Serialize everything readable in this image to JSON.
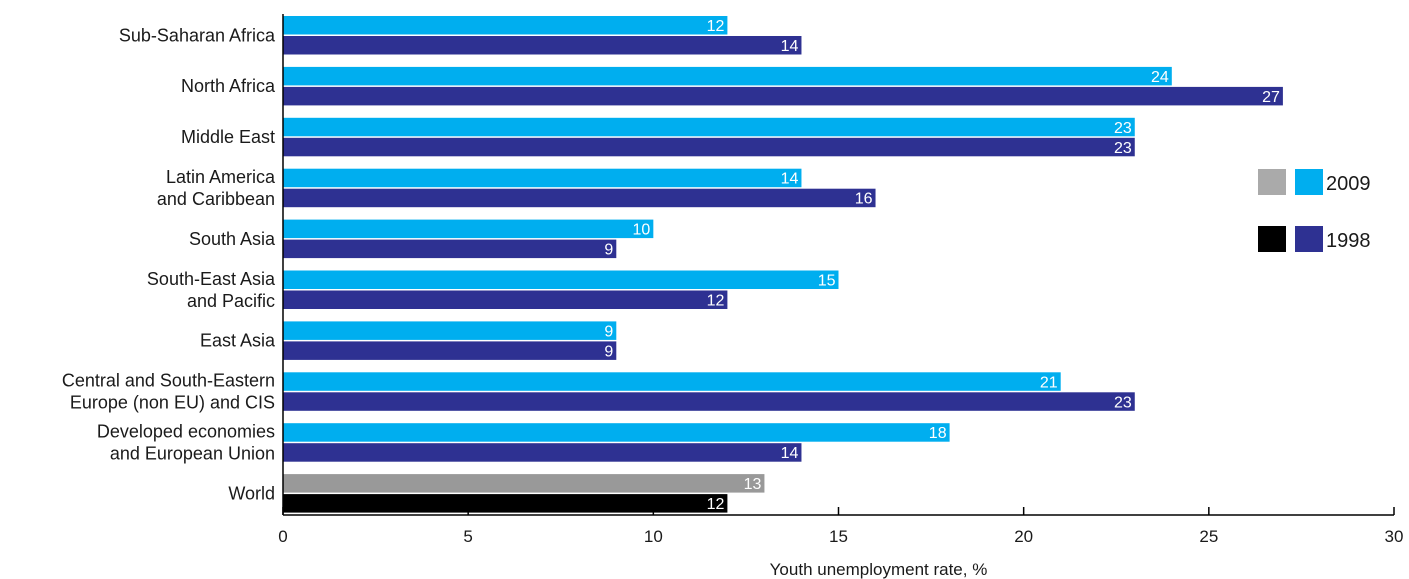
{
  "chart_data": {
    "type": "bar",
    "orientation": "horizontal",
    "categories": [
      [
        "Sub-Saharan Africa"
      ],
      [
        "North Africa"
      ],
      [
        "Middle East"
      ],
      [
        "Latin America",
        "and Caribbean"
      ],
      [
        "South Asia"
      ],
      [
        "South-East Asia",
        "and Pacific"
      ],
      [
        "East Asia"
      ],
      [
        "Central and South-Eastern",
        "Europe (non EU) and CIS"
      ],
      [
        "Developed economies",
        "and European Union"
      ],
      [
        "World"
      ]
    ],
    "series": [
      {
        "name": "2009",
        "values": [
          12,
          24,
          23,
          14,
          10,
          15,
          9,
          21,
          18,
          13
        ]
      },
      {
        "name": "1998",
        "values": [
          14,
          27,
          23,
          16,
          9,
          12,
          9,
          23,
          14,
          12
        ]
      }
    ],
    "colors": {
      "2009": "#00aeef",
      "1998": "#2e3192",
      "world_2009": "#999999",
      "world_1998": "#000000"
    },
    "xlabel": "Youth unemployment rate, %",
    "xlim": [
      0,
      30
    ],
    "xticks": [
      0,
      5,
      10,
      15,
      20,
      25,
      30
    ],
    "grid": false,
    "legend": {
      "placement": "right",
      "entries": [
        {
          "label": "2009",
          "swatches": [
            "#aaaaaa",
            "#00aeef"
          ]
        },
        {
          "label": "1998",
          "swatches": [
            "#000000",
            "#2e3192"
          ]
        }
      ]
    }
  }
}
